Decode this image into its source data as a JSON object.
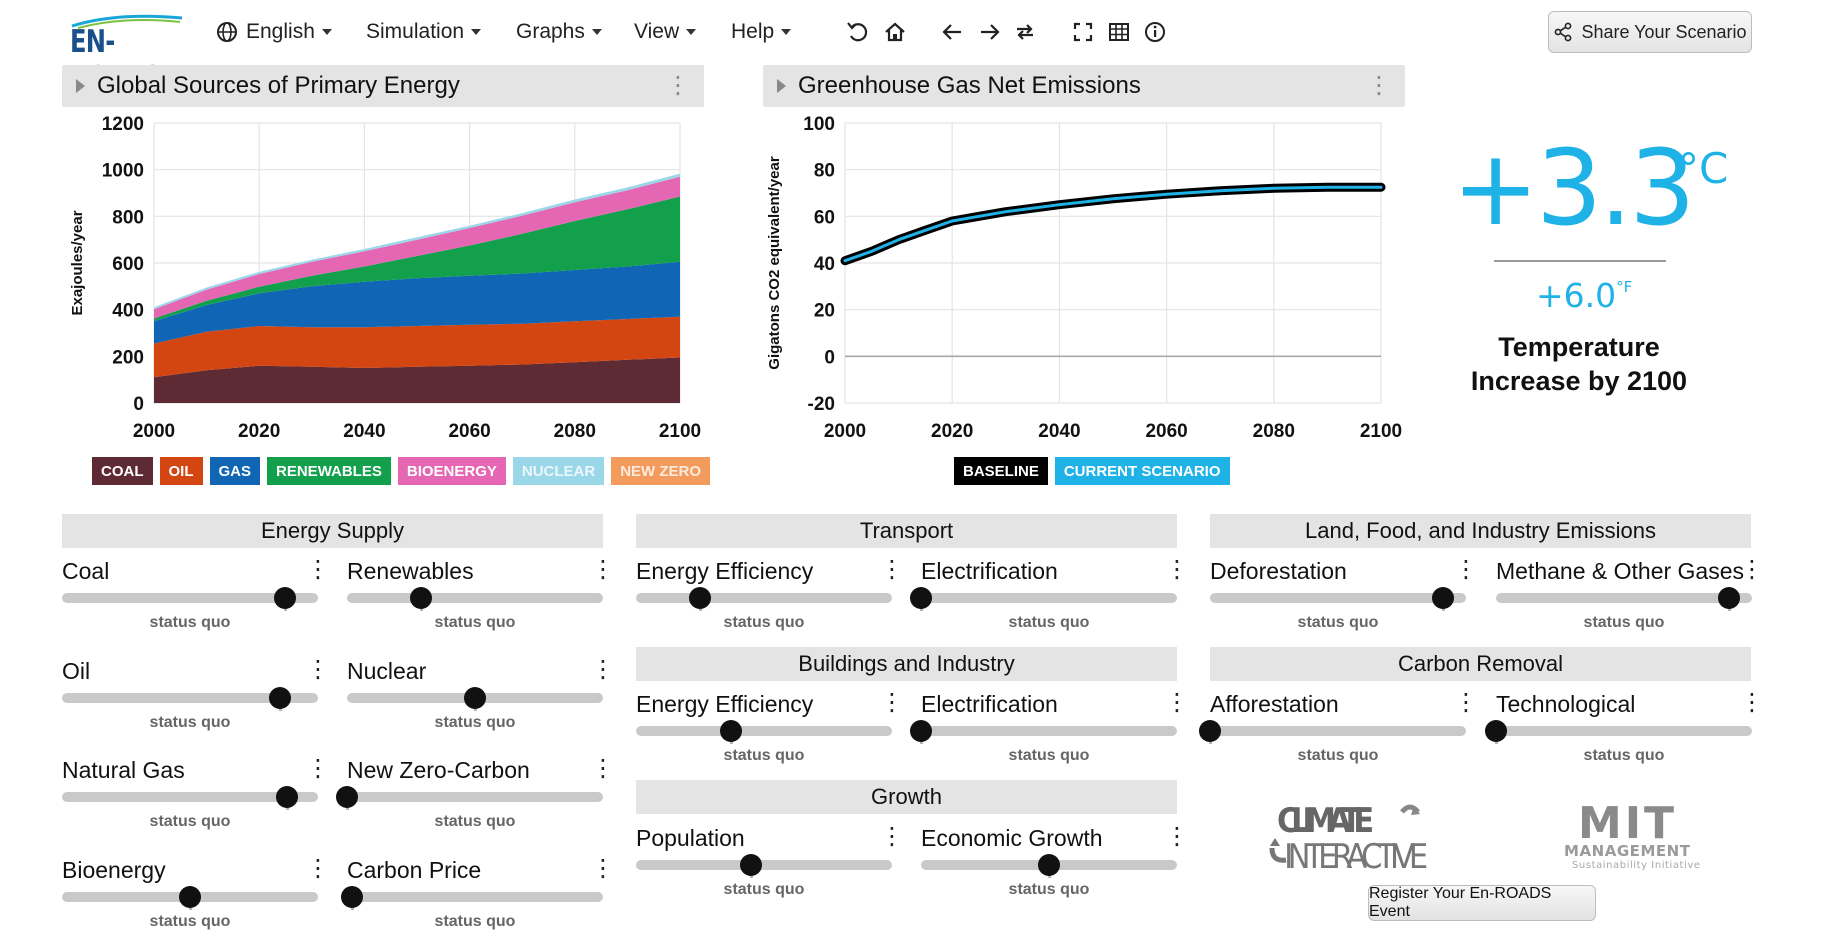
{
  "app": {
    "logo_text": "EN-ROADS"
  },
  "menus": [
    {
      "label": "English",
      "icon": "globe-icon"
    },
    {
      "label": "Simulation"
    },
    {
      "label": "Graphs"
    },
    {
      "label": "View"
    },
    {
      "label": "Help"
    }
  ],
  "toolbar_icons": [
    "undo-icon",
    "home-icon",
    "back-arrow-icon",
    "forward-arrow-icon",
    "redo-icon",
    "fullscreen-icon",
    "table-icon",
    "info-icon"
  ],
  "share_button": {
    "label": "Share Your Scenario",
    "icon": "share-icon"
  },
  "graph_left": {
    "title": "Global Sources of Primary Energy",
    "ylabel": "Exajoules/year",
    "legend": [
      {
        "label": "COAL",
        "color": "#5e2a33"
      },
      {
        "label": "OIL",
        "color": "#d34511"
      },
      {
        "label": "GAS",
        "color": "#1066b4"
      },
      {
        "label": "RENEWABLES",
        "color": "#12a04c"
      },
      {
        "label": "BIOENERGY",
        "color": "#e567b3"
      },
      {
        "label": "NUCLEAR",
        "color": "#9ad7e9"
      },
      {
        "label": "NEW ZERO",
        "color": "#f39b5d"
      }
    ]
  },
  "graph_right": {
    "title": "Greenhouse Gas Net Emissions",
    "ylabel": "Gigatons CO2 equivalent/year",
    "legend": [
      {
        "label": "BASELINE",
        "color": "#000000"
      },
      {
        "label": "CURRENT SCENARIO",
        "color": "#1fb2e6"
      }
    ]
  },
  "chart_data": [
    {
      "type": "area",
      "title": "Global Sources of Primary Energy",
      "ylabel": "Exajoules/year",
      "xlim": [
        2000,
        2100
      ],
      "ylim": [
        0,
        1200
      ],
      "x_ticks": [
        2000,
        2020,
        2040,
        2060,
        2080,
        2100
      ],
      "y_ticks": [
        0,
        200,
        400,
        600,
        800,
        1000,
        1200
      ],
      "x": [
        2000,
        2010,
        2020,
        2030,
        2040,
        2050,
        2060,
        2070,
        2080,
        2090,
        2100
      ],
      "stacked": true,
      "series": [
        {
          "name": "COAL",
          "color": "#5e2a33",
          "values": [
            110,
            140,
            160,
            155,
            150,
            155,
            160,
            165,
            175,
            185,
            195
          ]
        },
        {
          "name": "OIL",
          "color": "#d34511",
          "values": [
            145,
            165,
            170,
            170,
            175,
            175,
            175,
            175,
            175,
            175,
            175
          ]
        },
        {
          "name": "GAS",
          "color": "#1066b4",
          "values": [
            95,
            115,
            140,
            175,
            195,
            205,
            210,
            215,
            220,
            225,
            235
          ]
        },
        {
          "name": "RENEWABLES",
          "color": "#12a04c",
          "values": [
            12,
            18,
            28,
            45,
            65,
            95,
            130,
            170,
            210,
            245,
            280
          ]
        },
        {
          "name": "BIOENERGY",
          "color": "#e567b3",
          "values": [
            40,
            48,
            55,
            60,
            65,
            70,
            75,
            78,
            80,
            82,
            85
          ]
        },
        {
          "name": "NUCLEAR",
          "color": "#9ad7e9",
          "values": [
            8,
            9,
            9,
            9,
            10,
            10,
            10,
            11,
            12,
            12,
            13
          ]
        },
        {
          "name": "NEW ZERO",
          "color": "#f39b5d",
          "values": [
            0,
            0,
            0,
            0,
            0,
            0,
            0,
            0,
            0,
            0,
            0
          ]
        }
      ]
    },
    {
      "type": "line",
      "title": "Greenhouse Gas Net Emissions",
      "ylabel": "Gigatons CO2 equivalent/year",
      "xlim": [
        2000,
        2100
      ],
      "ylim": [
        -20,
        100
      ],
      "x_ticks": [
        2000,
        2020,
        2040,
        2060,
        2080,
        2100
      ],
      "y_ticks": [
        -20,
        0,
        20,
        40,
        60,
        80,
        100
      ],
      "x": [
        2000,
        2005,
        2010,
        2015,
        2020,
        2025,
        2030,
        2040,
        2050,
        2060,
        2070,
        2080,
        2090,
        2100
      ],
      "series": [
        {
          "name": "BASELINE",
          "color": "#000000",
          "values": [
            41,
            45,
            50,
            54,
            58,
            60,
            62,
            65,
            67.5,
            69.5,
            71,
            72,
            72.5,
            72.5
          ]
        },
        {
          "name": "CURRENT SCENARIO",
          "color": "#1fb2e6",
          "values": [
            41,
            45,
            50,
            54,
            58,
            60,
            62,
            65,
            67.5,
            69.5,
            71,
            72,
            72.5,
            72.5
          ]
        }
      ]
    }
  ],
  "temperature": {
    "celsius_value": "+3.3",
    "celsius_unit": "°C",
    "fahrenheit_value": "+6.0",
    "fahrenheit_unit": "°F",
    "label": "Temperature Increase by 2100"
  },
  "sections": {
    "energy_supply": "Energy Supply",
    "transport": "Transport",
    "buildings": "Buildings and Industry",
    "growth": "Growth",
    "land": "Land, Food, and Industry Emissions",
    "carbon_removal": "Carbon Removal"
  },
  "sliders": [
    {
      "id": "coal",
      "label": "Coal",
      "status": "status quo",
      "value": 0.87
    },
    {
      "id": "renewables",
      "label": "Renewables",
      "status": "status quo",
      "value": 0.29
    },
    {
      "id": "oil",
      "label": "Oil",
      "status": "status quo",
      "value": 0.85
    },
    {
      "id": "nuclear",
      "label": "Nuclear",
      "status": "status quo",
      "value": 0.5
    },
    {
      "id": "natural-gas",
      "label": "Natural Gas",
      "status": "status quo",
      "value": 0.88
    },
    {
      "id": "new-zero-carbon",
      "label": "New Zero-Carbon",
      "status": "status quo",
      "value": 0.0
    },
    {
      "id": "bioenergy",
      "label": "Bioenergy",
      "status": "status quo",
      "value": 0.5
    },
    {
      "id": "carbon-price",
      "label": "Carbon Price",
      "status": "status quo",
      "value": 0.02
    },
    {
      "id": "transport-efficiency",
      "label": "Energy Efficiency",
      "status": "status quo",
      "value": 0.25
    },
    {
      "id": "transport-electrification",
      "label": "Electrification",
      "status": "status quo",
      "value": 0.0
    },
    {
      "id": "buildings-efficiency",
      "label": "Energy Efficiency",
      "status": "status quo",
      "value": 0.37
    },
    {
      "id": "buildings-electrification",
      "label": "Electrification",
      "status": "status quo",
      "value": 0.0
    },
    {
      "id": "population",
      "label": "Population",
      "status": "status quo",
      "value": 0.45
    },
    {
      "id": "economic-growth",
      "label": "Economic Growth",
      "status": "status quo",
      "value": 0.5
    },
    {
      "id": "deforestation",
      "label": "Deforestation",
      "status": "status quo",
      "value": 0.91
    },
    {
      "id": "methane",
      "label": "Methane & Other Gases",
      "status": "status quo",
      "value": 0.91
    },
    {
      "id": "afforestation",
      "label": "Afforestation",
      "status": "status quo",
      "value": 0.0
    },
    {
      "id": "technological",
      "label": "Technological",
      "status": "status quo",
      "value": 0.0
    }
  ],
  "footer": {
    "climate_interactive_line1": "CLIMATE",
    "climate_interactive_line2": "INTERACTIVE",
    "mit_line1": "MIT",
    "mit_line2": "MANAGEMENT",
    "mit_line3": "Sustainability Initiative",
    "register_button": "Register Your En-ROADS Event"
  }
}
